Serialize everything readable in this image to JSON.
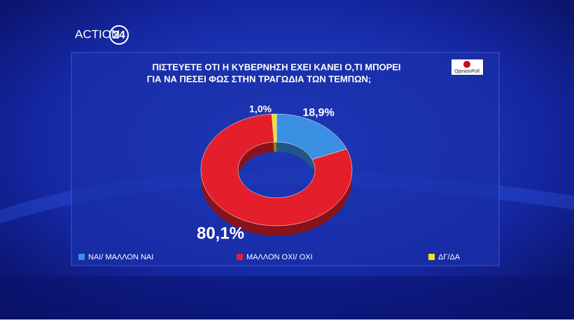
{
  "logo": {
    "brand": "ACTION",
    "number": "24"
  },
  "poll_logo": "OpinionPoll",
  "chart_data": {
    "type": "donut",
    "title": [
      "ΠΙΣΤΕΥΕΤΕ ΟΤΙ Η ΚΥΒΕΡΝΗΣΗ ΕΧΕΙ ΚΑΝΕΙ Ο,ΤΙ ΜΠΟΡΕΙ",
      "ΓΙΑ ΝΑ ΠΕΣΕΙ ΦΩΣ ΣΤΗΝ ΤΡΑΓΩΔΙΑ ΤΩΝ ΤΕΜΠΩΝ;"
    ],
    "categories": [
      "ΝΑΙ/ ΜΑΛΛΟΝ ΝΑΙ",
      "ΜΑΛΛΟΝ ΟΧΙ/ ΟΧΙ",
      "ΔΓ/ΔΑ"
    ],
    "values": [
      18.9,
      80.1,
      1.0
    ],
    "value_labels": [
      "18,9%",
      "80,1%",
      "1,0%"
    ],
    "colors": [
      "#3a8fe3",
      "#e41f2b",
      "#f2e01a"
    ]
  }
}
